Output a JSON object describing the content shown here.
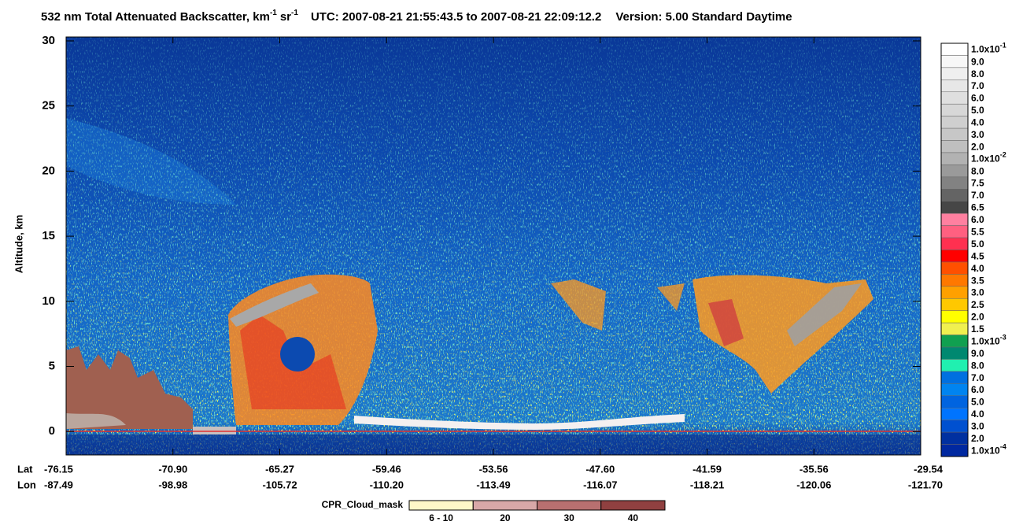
{
  "chart_data": {
    "type": "heatmap",
    "title": {
      "main": "532 nm Total Attenuated Backscatter, km",
      "unit_exp1": "-1",
      "unit2": "sr",
      "unit_exp2": "-1",
      "utc": "UTC:  2007-08-21 21:55:43.5  to  2007-08-21 22:09:12.2",
      "version": "Version: 5.00  Standard  Daytime"
    },
    "y_label": "Altitude, km",
    "ylim": [
      -1.8,
      30.3
    ],
    "yticks": [
      0,
      5,
      10,
      15,
      20,
      25,
      30
    ],
    "lat_label": "Lat",
    "lon_label": "Lon",
    "x_positions": [
      {
        "lat": "-76.15",
        "lon": "-87.49"
      },
      {
        "lat": "-70.90",
        "lon": "-98.98"
      },
      {
        "lat": "-65.27",
        "lon": "-105.72"
      },
      {
        "lat": "-59.46",
        "lon": "-110.20"
      },
      {
        "lat": "-53.56",
        "lon": "-113.49"
      },
      {
        "lat": "-47.60",
        "lon": "-116.07"
      },
      {
        "lat": "-41.59",
        "lon": "-118.21"
      },
      {
        "lat": "-35.56",
        "lon": "-120.06"
      },
      {
        "lat": "-29.54",
        "lon": "-121.70"
      }
    ],
    "colorbar": [
      {
        "label": {
          "text": "1.0x10",
          "exp": "-1"
        },
        "color": "#ffffff"
      },
      {
        "label": "9.0",
        "color": "#f7f7f7"
      },
      {
        "label": "8.0",
        "color": "#efefef"
      },
      {
        "label": "7.0",
        "color": "#e7e7e7"
      },
      {
        "label": "6.0",
        "color": "#dfdfdf"
      },
      {
        "label": "5.0",
        "color": "#d7d7d7"
      },
      {
        "label": "4.0",
        "color": "#cfcfcf"
      },
      {
        "label": "3.0",
        "color": "#c7c7c7"
      },
      {
        "label": "2.0",
        "color": "#bfbfbf"
      },
      {
        "label": {
          "text": "1.0x10",
          "exp": "-2"
        },
        "color": "#b2b2b2"
      },
      {
        "label": "8.0",
        "color": "#9a9a9a"
      },
      {
        "label": "7.5",
        "color": "#828282"
      },
      {
        "label": "7.0",
        "color": "#646464"
      },
      {
        "label": "6.5",
        "color": "#464646"
      },
      {
        "label": "6.0",
        "color": "#ff80a0"
      },
      {
        "label": "5.5",
        "color": "#ff6080"
      },
      {
        "label": "5.0",
        "color": "#ff3050"
      },
      {
        "label": "4.5",
        "color": "#ff0000"
      },
      {
        "label": "4.0",
        "color": "#ff5000"
      },
      {
        "label": "3.5",
        "color": "#ff7800"
      },
      {
        "label": "3.0",
        "color": "#ffa000"
      },
      {
        "label": "2.5",
        "color": "#ffc800"
      },
      {
        "label": "2.0",
        "color": "#ffff00"
      },
      {
        "label": "1.5",
        "color": "#f0f050"
      },
      {
        "label": {
          "text": "1.0x10",
          "exp": "-3"
        },
        "color": "#10a050"
      },
      {
        "label": "9.0",
        "color": "#008870"
      },
      {
        "label": "8.0",
        "color": "#20f0b0"
      },
      {
        "label": "7.0",
        "color": "#0070e0"
      },
      {
        "label": "6.0",
        "color": "#0084f0"
      },
      {
        "label": "5.0",
        "color": "#0064e0"
      },
      {
        "label": "4.0",
        "color": "#0074ff"
      },
      {
        "label": "3.0",
        "color": "#0050d0"
      },
      {
        "label": "2.0",
        "color": "#0030a0"
      },
      {
        "label": {
          "text": "1.0x10",
          "exp": "-4"
        },
        "color": "#0028a0"
      }
    ],
    "cpr_legend": {
      "label": "CPR_Cloud_mask",
      "bins": [
        {
          "label": "6 - 10",
          "color": "#fff8c8"
        },
        {
          "label": "20",
          "color": "#d8a8a8"
        },
        {
          "label": "30",
          "color": "#b87070"
        },
        {
          "label": "40",
          "color": "#904040"
        }
      ]
    }
  }
}
